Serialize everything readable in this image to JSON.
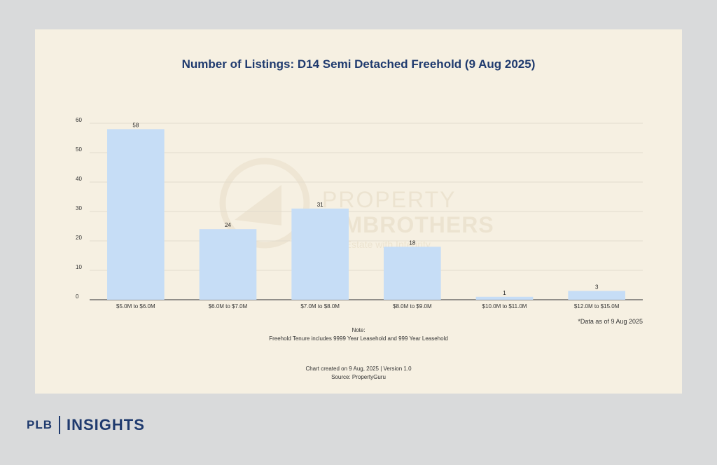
{
  "chart_data": {
    "type": "bar",
    "title": "Number of Listings: D14 Semi Detached Freehold (9 Aug 2025)",
    "categories": [
      "$5.0M to $6.0M",
      "$6.0M to $7.0M",
      "$7.0M to $8.0M",
      "$8.0M to $9.0M",
      "$10.0M to $11.0M",
      "$12.0M to $15.0M"
    ],
    "values": [
      58,
      24,
      31,
      18,
      1,
      3
    ],
    "ylim": [
      0,
      60
    ],
    "yticks": [
      0,
      10,
      20,
      30,
      40,
      50,
      60
    ],
    "grid": true,
    "bar_color": "#c6ddf6",
    "xlabel": "",
    "ylabel": ""
  },
  "annotation": "*Data as of 9 Aug 2025",
  "note": {
    "heading": "Note:",
    "text": "Freehold Tenure includes 9999 Year Leasehold and 999 Year Leasehold"
  },
  "footer": {
    "created": "Chart created on 9 Aug, 2025 | Version 1.0",
    "source": "Source: PropertyGuru"
  },
  "watermark": {
    "line1": "PROPERTY",
    "line2": "LIMBROTHERS",
    "tagline": "Real Estate with Integrity"
  },
  "brand": {
    "left": "PLB",
    "right": "INSIGHTS",
    "color": "#1f3a6e"
  }
}
